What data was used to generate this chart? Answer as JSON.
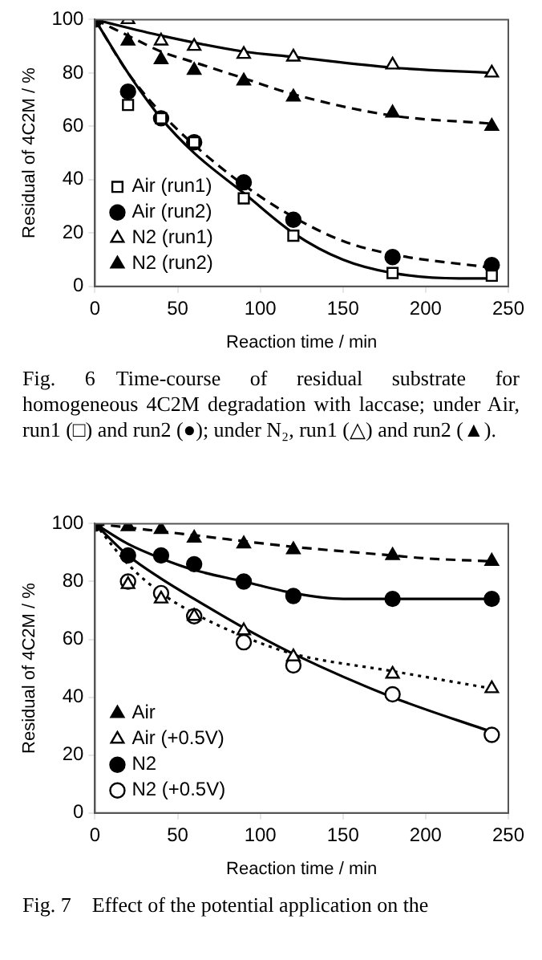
{
  "chart_data": [
    {
      "type": "scatter",
      "xlabel": "Reaction time / min",
      "ylabel": "Residual of 4C2M / %",
      "xlim": [
        0,
        250
      ],
      "xticks": [
        0,
        50,
        100,
        150,
        200,
        250
      ],
      "ylim": [
        0,
        100
      ],
      "yticks": [
        0,
        20,
        40,
        60,
        80,
        100
      ],
      "grid": false,
      "legend": "bottom left",
      "annotations": [
        "Fig. 6 Time-course of residual substrate for homogeneous 4C2M degradation with laccase; under Air, run1 (□) and run2 (●); under N₂, run1 (△) and run2 (▲)."
      ],
      "x": [
        0,
        20,
        40,
        60,
        90,
        120,
        180,
        240
      ],
      "series": [
        {
          "name": "Air (run1)",
          "color": "#ffffff",
          "marker": "square",
          "values": [
            null,
            68,
            63,
            54,
            33,
            19,
            5,
            4
          ]
        },
        {
          "name": "Air (run2)",
          "color": "#000000",
          "marker": "circle",
          "values": [
            100,
            73,
            63,
            54,
            39,
            25,
            11,
            8
          ]
        },
        {
          "name": "N2 (run1)",
          "color": "#ffffff",
          "marker": "triangle",
          "values": [
            null,
            100,
            92,
            90,
            87,
            86,
            83,
            80
          ]
        },
        {
          "name": "N2 (run2)",
          "color": "#000000",
          "marker": "triangle",
          "values": [
            null,
            92,
            85,
            81,
            77,
            71,
            65,
            60
          ]
        },
        {
          "type": "line",
          "color": "#000000",
          "line_style": "solid",
          "x": [
            0,
            20,
            40,
            60,
            90,
            120,
            150,
            180,
            220,
            240
          ],
          "values": [
            100,
            80,
            63,
            50,
            35,
            20,
            10,
            5,
            3,
            3
          ]
        },
        {
          "type": "line",
          "color": "#000000",
          "line_style": "dashed",
          "x": [
            0,
            20,
            40,
            60,
            90,
            120,
            150,
            180,
            240
          ],
          "values": [
            100,
            80,
            65,
            53,
            38,
            26,
            17,
            12,
            7
          ]
        },
        {
          "type": "line",
          "color": "#000000",
          "line_style": "solid",
          "x": [
            0,
            40,
            90,
            120,
            180,
            240
          ],
          "values": [
            100,
            94,
            88,
            86,
            82,
            80
          ]
        },
        {
          "type": "line",
          "color": "#000000",
          "line_style": "dashed",
          "x": [
            0,
            20,
            40,
            60,
            90,
            120,
            180,
            240
          ],
          "values": [
            100,
            94,
            88,
            84,
            78,
            72,
            64,
            61
          ]
        }
      ]
    },
    {
      "type": "scatter",
      "xlabel": "Reaction time / min",
      "ylabel": "Residual of 4C2M / %",
      "xlim": [
        0,
        250
      ],
      "xticks": [
        0,
        50,
        100,
        150,
        200,
        250
      ],
      "ylim": [
        0,
        100
      ],
      "yticks": [
        0,
        20,
        40,
        60,
        80,
        100
      ],
      "grid": false,
      "legend": "bottom left",
      "annotations": [
        "Fig. 7 Effect of the potential application on the"
      ],
      "x": [
        0,
        20,
        40,
        60,
        90,
        120,
        180,
        240
      ],
      "series": [
        {
          "name": "Air",
          "color": "#000000",
          "marker": "triangle",
          "values": [
            null,
            99,
            98,
            95,
            93,
            91,
            89,
            87
          ]
        },
        {
          "name": "Air (+0.5V)",
          "color": "#ffffff",
          "marker": "triangle",
          "values": [
            null,
            79,
            74,
            68,
            63,
            54,
            48,
            43
          ]
        },
        {
          "name": "N2",
          "color": "#000000",
          "marker": "circle",
          "values": [
            100,
            89,
            89,
            86,
            80,
            75,
            74,
            74
          ]
        },
        {
          "name": "N2 (+0.5V)",
          "color": "#ffffff",
          "marker": "circle",
          "values": [
            null,
            80,
            76,
            68,
            59,
            51,
            41,
            27
          ]
        },
        {
          "type": "line",
          "color": "#000000",
          "line_style": "dashed",
          "x": [
            0,
            60,
            120,
            180,
            200,
            240
          ],
          "values": [
            100,
            96,
            92,
            89,
            88,
            87
          ]
        },
        {
          "type": "line",
          "color": "#000000",
          "line_style": "solid",
          "x": [
            0,
            20,
            40,
            60,
            90,
            120,
            150,
            240
          ],
          "values": [
            100,
            93,
            88,
            84,
            80,
            76,
            74,
            74
          ]
        },
        {
          "type": "line",
          "color": "#000000",
          "line_style": "dotted",
          "x": [
            0,
            20,
            40,
            60,
            90,
            120,
            180,
            240
          ],
          "values": [
            100,
            86,
            76,
            69,
            61,
            55,
            49,
            43
          ]
        },
        {
          "type": "line",
          "color": "#000000",
          "line_style": "solid",
          "x": [
            0,
            20,
            40,
            60,
            90,
            120,
            180,
            240
          ],
          "values": [
            100,
            89,
            81,
            74,
            64,
            55,
            40,
            28
          ]
        }
      ]
    }
  ]
}
